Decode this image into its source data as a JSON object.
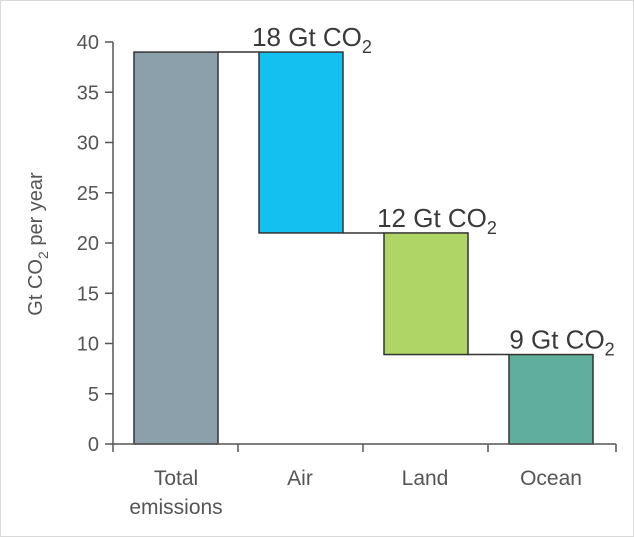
{
  "chart_data": {
    "type": "bar",
    "subtype": "waterfall",
    "title": "",
    "ylabel": {
      "prefix": "Gt CO",
      "sub": "2",
      "suffix": " per year"
    },
    "ylim": [
      0,
      40
    ],
    "yticks": [
      0,
      5,
      10,
      15,
      20,
      25,
      30,
      35,
      40
    ],
    "grid": false,
    "legend": "none",
    "categories": [
      {
        "lines": [
          "Total",
          "emissions"
        ]
      },
      {
        "lines": [
          "Air"
        ]
      },
      {
        "lines": [
          "Land"
        ]
      },
      {
        "lines": [
          "Ocean"
        ]
      }
    ],
    "bars": [
      {
        "category": "Total emissions",
        "bottom": 0,
        "top": 39,
        "value": 39,
        "color": "#8ba0ab",
        "label": null
      },
      {
        "category": "Air",
        "bottom": 21,
        "top": 39,
        "value": 18,
        "color": "#13c0ef",
        "label": {
          "prefix": "18 Gt CO",
          "sub": "2"
        }
      },
      {
        "category": "Land",
        "bottom": 8.9,
        "top": 21,
        "value": 12,
        "color": "#aed566",
        "label": {
          "prefix": "12 Gt CO",
          "sub": "2"
        }
      },
      {
        "category": "Ocean",
        "bottom": 0,
        "top": 8.9,
        "value": 9,
        "color": "#5faf9c",
        "label": {
          "prefix": "9 Gt CO",
          "sub": "2"
        }
      }
    ]
  }
}
